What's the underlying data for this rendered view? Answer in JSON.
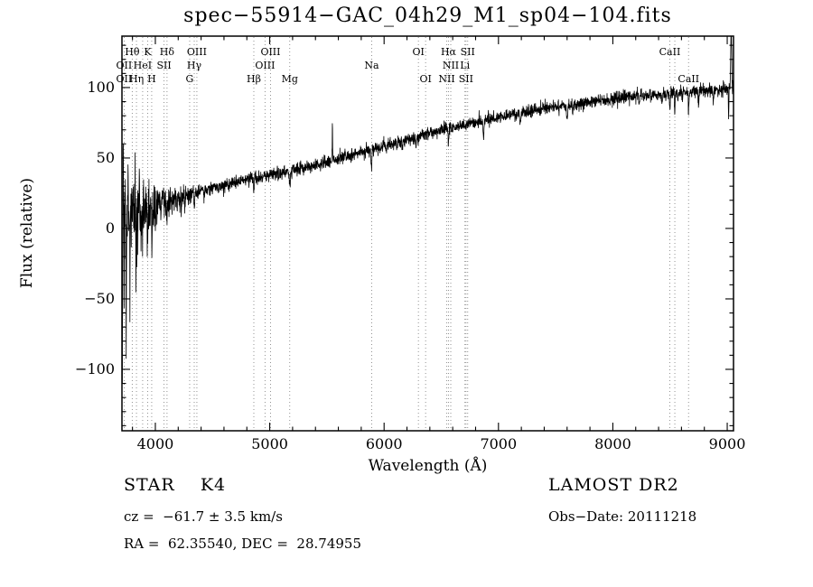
{
  "annotations": {
    "object_type": "STAR    K4",
    "survey": "LAMOST DR2",
    "cz": "cz =  −61.7 ± 3.5 km/s",
    "obs_date": "Obs−Date: 20111218",
    "ra_dec": "RA =  62.35540, DEC =  28.74955"
  },
  "chart_data": {
    "type": "line",
    "title": "spec−55914−GAC_04h29_M1_sp04−104.fits",
    "xlabel": "Wavelength (Å)",
    "ylabel": "Flux (relative)",
    "xlim": [
      3708,
      9055
    ],
    "ylim": [
      -143.6,
      136.5
    ],
    "xticks": [
      4000,
      5000,
      6000,
      7000,
      8000,
      9000
    ],
    "yticks": [
      100,
      50,
      0,
      -50,
      -100
    ],
    "x_minor_step": 200,
    "y_minor_step": 10,
    "grid": false,
    "line_color": "#000000",
    "marker_line_color": "#888888",
    "continuum": [
      [
        3708,
        8
      ],
      [
        3850,
        10
      ],
      [
        4000,
        16
      ],
      [
        4300,
        24
      ],
      [
        4600,
        31
      ],
      [
        5000,
        38
      ],
      [
        5400,
        45
      ],
      [
        5800,
        54
      ],
      [
        6200,
        63
      ],
      [
        6600,
        72
      ],
      [
        7000,
        79
      ],
      [
        7400,
        85
      ],
      [
        7800,
        90
      ],
      [
        8200,
        94
      ],
      [
        8600,
        96
      ],
      [
        9000,
        99
      ],
      [
        9055,
        100
      ]
    ],
    "noise_sigma": {
      "base": 2.3,
      "blue_amp": 14,
      "blue_scale": 360
    },
    "features": [
      {
        "wl": 3712,
        "amp": -120,
        "w": 2.5
      },
      {
        "wl": 3720,
        "amp": 55,
        "w": 2
      },
      {
        "wl": 3728,
        "amp": -60,
        "w": 2
      },
      {
        "wl": 3745,
        "amp": -95,
        "w": 2.5
      },
      {
        "wl": 3762,
        "amp": 40,
        "w": 2
      },
      {
        "wl": 3778,
        "amp": -45,
        "w": 2
      },
      {
        "wl": 3798,
        "amp": -25,
        "w": 2.5
      },
      {
        "wl": 3830,
        "amp": -35,
        "w": 3
      },
      {
        "wl": 3860,
        "amp": 20,
        "w": 2
      },
      {
        "wl": 3890,
        "amp": -20,
        "w": 3
      },
      {
        "wl": 3933,
        "amp": -18,
        "w": 3
      },
      {
        "wl": 3968,
        "amp": -15,
        "w": 3
      },
      {
        "wl": 4102,
        "amp": -10,
        "w": 4
      },
      {
        "wl": 4226,
        "amp": -8,
        "w": 3
      },
      {
        "wl": 4340,
        "amp": -9,
        "w": 4
      },
      {
        "wl": 4861,
        "amp": -9,
        "w": 5
      },
      {
        "wl": 5175,
        "amp": -9,
        "w": 8
      },
      {
        "wl": 5548,
        "amp": 26,
        "w": 2.5
      },
      {
        "wl": 5890,
        "amp": -13,
        "w": 6
      },
      {
        "wl": 6160,
        "amp": -8,
        "w": 4
      },
      {
        "wl": 6280,
        "amp": -7,
        "w": 4
      },
      {
        "wl": 6563,
        "amp": -9,
        "w": 5
      },
      {
        "wl": 6870,
        "amp": -9,
        "w": 7
      },
      {
        "wl": 7190,
        "amp": -6,
        "w": 6
      },
      {
        "wl": 7600,
        "amp": -8,
        "w": 7
      },
      {
        "wl": 7650,
        "amp": -6,
        "w": 5
      },
      {
        "wl": 8230,
        "amp": -6,
        "w": 4
      },
      {
        "wl": 8430,
        "amp": -7,
        "w": 4
      },
      {
        "wl": 8498,
        "amp": -11,
        "w": 4
      },
      {
        "wl": 8542,
        "amp": -13,
        "w": 4
      },
      {
        "wl": 8662,
        "amp": -13,
        "w": 4
      },
      {
        "wl": 8750,
        "amp": -9,
        "w": 4
      },
      {
        "wl": 8880,
        "amp": -8,
        "w": 4
      },
      {
        "wl": 9012,
        "amp": -20,
        "w": 3
      },
      {
        "wl": 9035,
        "amp": 42,
        "w": 6
      }
    ],
    "spectral_lines": [
      {
        "label": "Hθ",
        "wl": 3798,
        "row": 0
      },
      {
        "label": "K",
        "wl": 3933,
        "row": 0
      },
      {
        "label": "Hδ",
        "wl": 4102,
        "row": 0
      },
      {
        "label": "OIII",
        "wl": 4363,
        "row": 0
      },
      {
        "label": "OIII",
        "wl": 5007,
        "row": 0
      },
      {
        "label": "OI",
        "wl": 6300,
        "row": 0
      },
      {
        "label": "Hα",
        "wl": 6563,
        "row": 0
      },
      {
        "label": "SII",
        "wl": 6731,
        "row": 0
      },
      {
        "label": "CaII",
        "wl": 8498,
        "row": 0
      },
      {
        "label": "OII",
        "wl": 3727,
        "row": 1
      },
      {
        "label": "HeI",
        "wl": 3889,
        "row": 1
      },
      {
        "label": "SII",
        "wl": 4076,
        "row": 1
      },
      {
        "label": "Hγ",
        "wl": 4340,
        "row": 1
      },
      {
        "label": "OIII",
        "wl": 4959,
        "row": 1
      },
      {
        "label": "Na",
        "wl": 5892,
        "row": 1
      },
      {
        "label": "NII",
        "wl": 6583,
        "row": 1
      },
      {
        "label": "Li",
        "wl": 6707,
        "row": 1
      },
      {
        "label": "",
        "wl": 8542,
        "row": 1
      },
      {
        "label": "OII",
        "wl": 3727,
        "row": 2
      },
      {
        "label": "Hη",
        "wl": 3835,
        "row": 2
      },
      {
        "label": "H",
        "wl": 3968,
        "row": 2
      },
      {
        "label": "G",
        "wl": 4300,
        "row": 2
      },
      {
        "label": "Hβ",
        "wl": 4861,
        "row": 2
      },
      {
        "label": "Mg",
        "wl": 5175,
        "row": 2
      },
      {
        "label": "OI",
        "wl": 6363,
        "row": 2
      },
      {
        "label": "NII",
        "wl": 6548,
        "row": 2
      },
      {
        "label": "SII",
        "wl": 6716,
        "row": 2
      },
      {
        "label": "CaII",
        "wl": 8662,
        "row": 2
      }
    ]
  }
}
